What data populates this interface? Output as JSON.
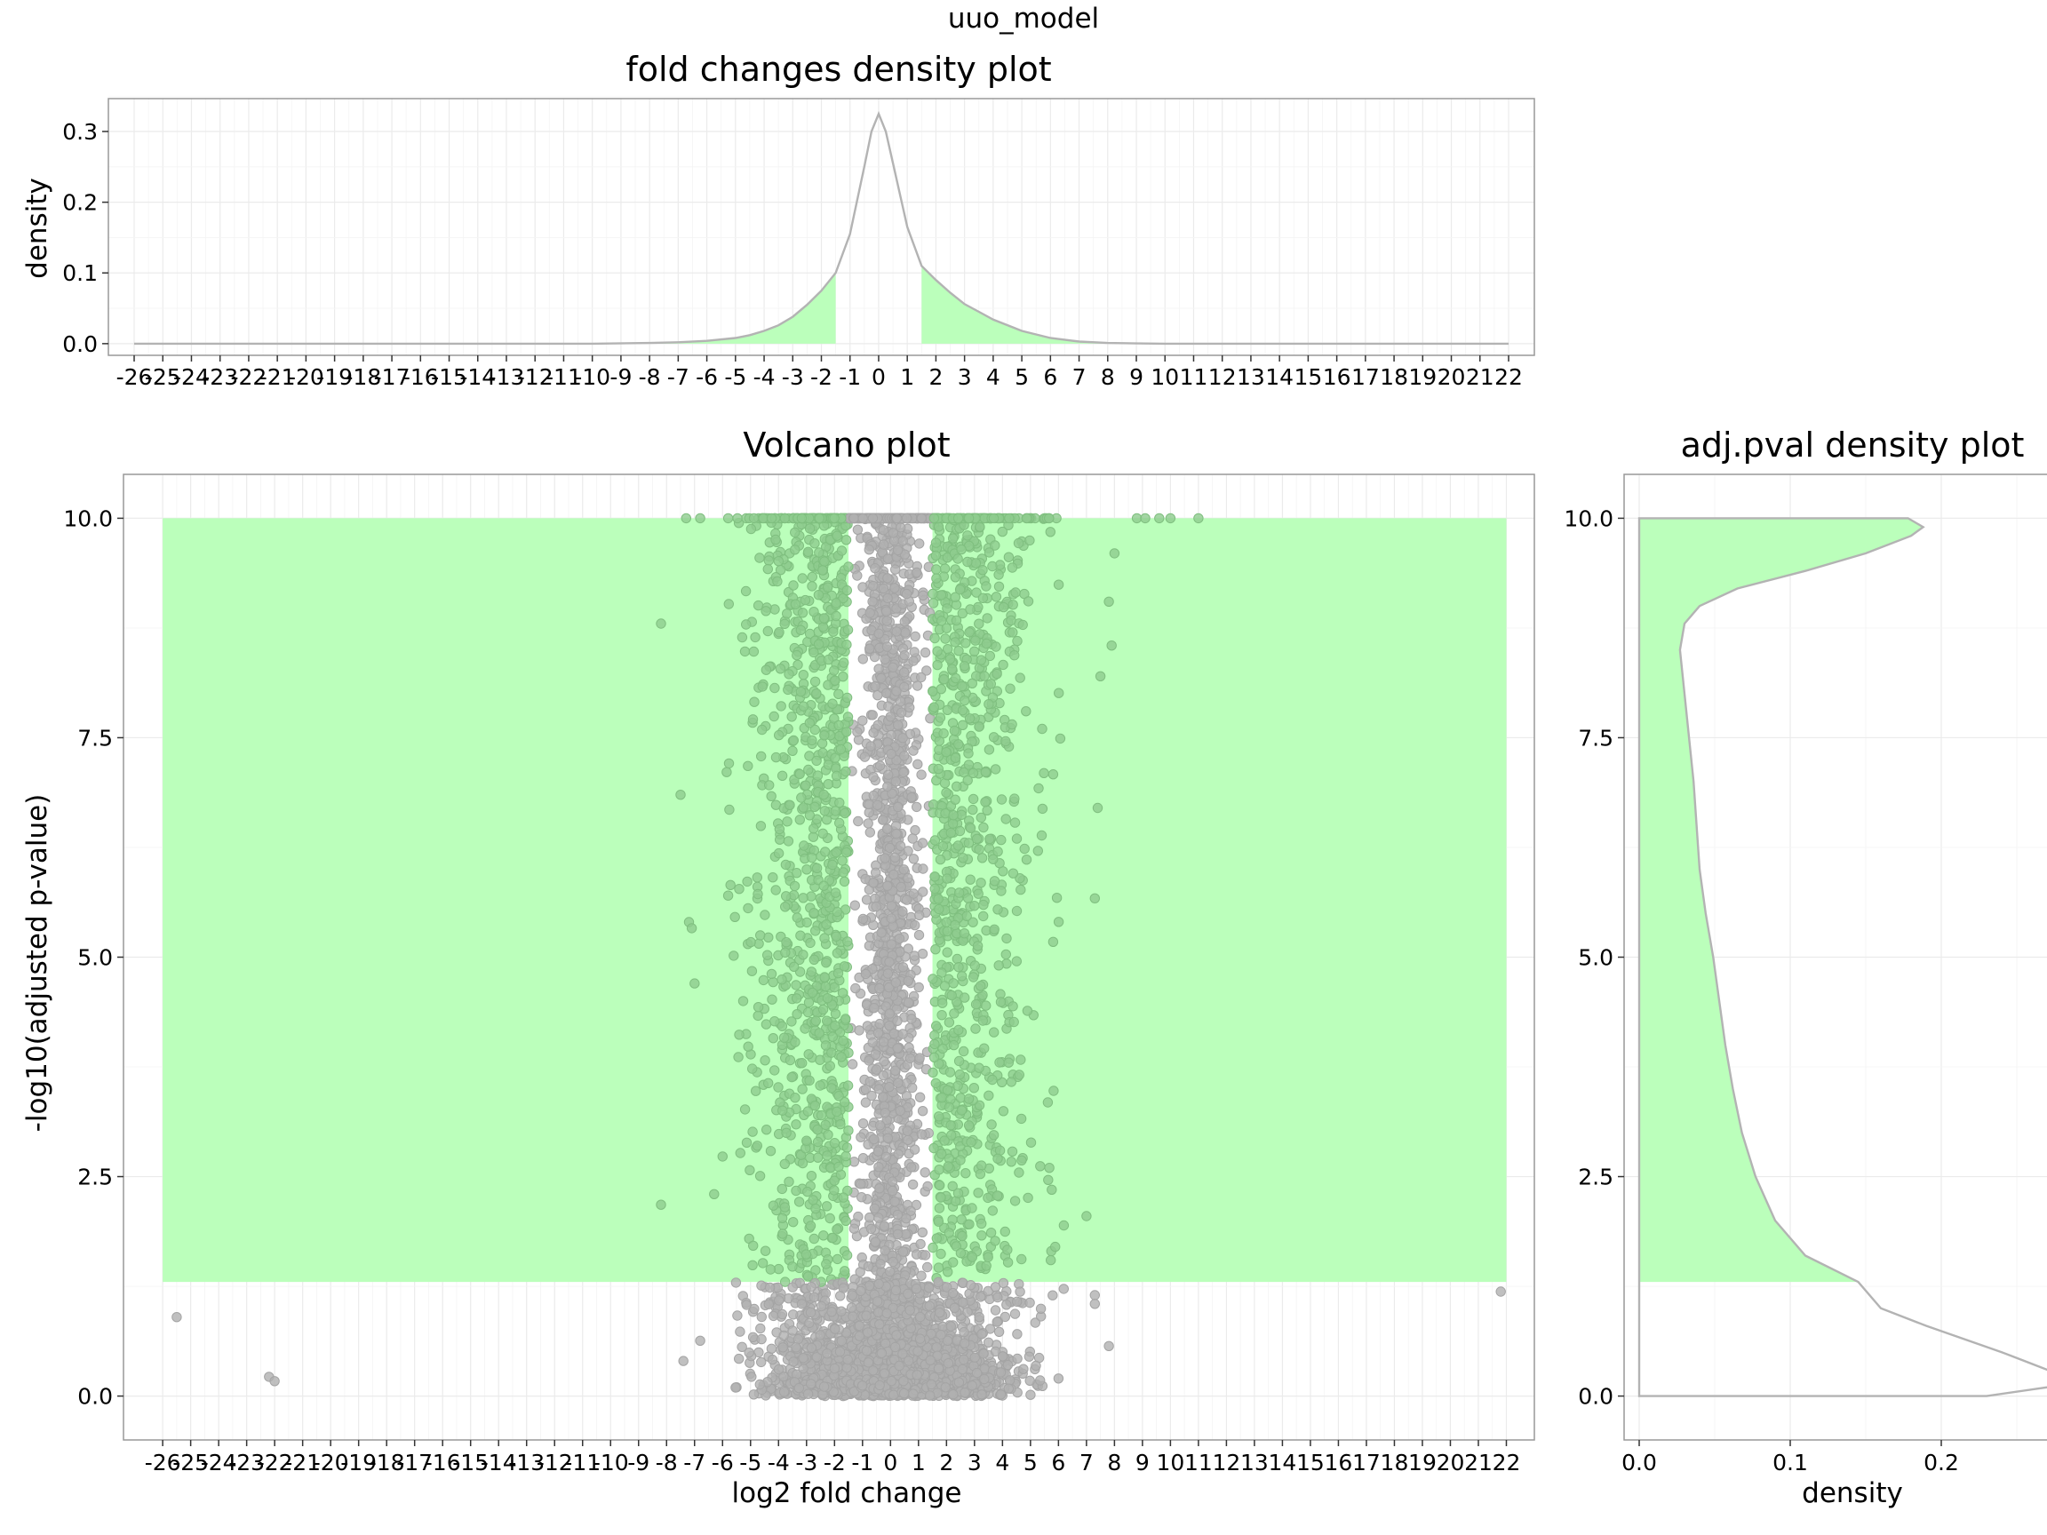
{
  "figure_title": "uuo_model",
  "colors": {
    "highlight": "#bbffbb",
    "density_line": "#b3b3b3",
    "point_gray": "#b0b0b0",
    "point_green": "#8fcc8f",
    "grid": "#ebebeb",
    "panel_border": "#999999"
  },
  "chart_data": [
    {
      "id": "fc_density",
      "type": "area",
      "title": "fold changes density plot",
      "xlabel": "",
      "ylabel": "density",
      "xlim": [
        -26,
        22
      ],
      "ylim": [
        0,
        0.33
      ],
      "x_ticks": [
        -26,
        -25,
        -24,
        -23,
        -22,
        -21,
        -20,
        -19,
        -18,
        -17,
        -16,
        -15,
        -14,
        -13,
        -12,
        -11,
        -10,
        -9,
        -8,
        -7,
        -6,
        -5,
        -4,
        -3,
        -2,
        -1,
        0,
        1,
        2,
        3,
        4,
        5,
        6,
        7,
        8,
        9,
        10,
        11,
        12,
        13,
        14,
        15,
        16,
        17,
        18,
        19,
        20,
        21,
        22
      ],
      "y_ticks": [
        0.0,
        0.1,
        0.2,
        0.3
      ],
      "y_tick_labels": [
        "0.0",
        "0.1",
        "0.2",
        "0.3"
      ],
      "highlight_regions": [
        [
          -10,
          -1.5
        ],
        [
          1.5,
          10
        ]
      ],
      "x": [
        -26,
        -10,
        -8,
        -7,
        -6,
        -5,
        -4.5,
        -4,
        -3.5,
        -3,
        -2.5,
        -2,
        -1.5,
        -1,
        -0.5,
        -0.25,
        0,
        0.25,
        0.5,
        1,
        1.5,
        2,
        2.5,
        3,
        3.5,
        4,
        5,
        6,
        7,
        8,
        9,
        10,
        22
      ],
      "y": [
        0,
        0,
        0.001,
        0.002,
        0.004,
        0.008,
        0.012,
        0.018,
        0.026,
        0.038,
        0.055,
        0.075,
        0.1,
        0.155,
        0.25,
        0.3,
        0.325,
        0.3,
        0.255,
        0.165,
        0.11,
        0.09,
        0.072,
        0.056,
        0.045,
        0.034,
        0.018,
        0.008,
        0.003,
        0.001,
        0.0003,
        0,
        0
      ]
    },
    {
      "id": "volcano",
      "type": "scatter",
      "title": "Volcano plot",
      "xlabel": "log2 fold change",
      "ylabel": "-log10(adjusted p-value)",
      "xlim": [
        -26,
        22
      ],
      "ylim": [
        0,
        10
      ],
      "x_ticks": [
        -26,
        -25,
        -24,
        -23,
        -22,
        -21,
        -20,
        -19,
        -18,
        -17,
        -16,
        -15,
        -14,
        -13,
        -12,
        -11,
        -10,
        -9,
        -8,
        -7,
        -6,
        -5,
        -4,
        -3,
        -2,
        -1,
        0,
        1,
        2,
        3,
        4,
        5,
        6,
        7,
        8,
        9,
        10,
        11,
        12,
        13,
        14,
        15,
        16,
        17,
        18,
        19,
        20,
        21,
        22
      ],
      "y_ticks": [
        0,
        2.5,
        5,
        7.5,
        10
      ],
      "y_tick_labels": [
        "0.0",
        "2.5",
        "5.0",
        "7.5",
        "10.0"
      ],
      "highlight_region": {
        "x": [
          -26,
          22
        ],
        "y": [
          1.3,
          10
        ]
      },
      "excluded_band": [
        -1.5,
        1.5
      ],
      "thresholds": {
        "log2fc": 1.5,
        "neg_log10_padj": 1.3
      },
      "outliers": [
        {
          "x": -25.5,
          "y": 0.9
        },
        {
          "x": -22.2,
          "y": 0.22
        },
        {
          "x": -22,
          "y": 0.17
        },
        {
          "x": 21.8,
          "y": 1.19
        },
        {
          "x": -8.2,
          "y": 8.8
        },
        {
          "x": -8.2,
          "y": 2.18
        },
        {
          "x": -7.5,
          "y": 6.85
        },
        {
          "x": -7.2,
          "y": 5.4
        },
        {
          "x": -7.1,
          "y": 5.33
        },
        {
          "x": -7,
          "y": 4.7
        },
        {
          "x": -6.8,
          "y": 0.63
        },
        {
          "x": -7.4,
          "y": 0.4
        },
        {
          "x": -6.3,
          "y": 2.3
        },
        {
          "x": 8,
          "y": 9.6
        },
        {
          "x": 7.8,
          "y": 9.05
        },
        {
          "x": 7.9,
          "y": 8.55
        },
        {
          "x": 7.5,
          "y": 8.2
        },
        {
          "x": 7.4,
          "y": 6.7
        },
        {
          "x": 7.3,
          "y": 5.67
        },
        {
          "x": 7,
          "y": 2.05
        },
        {
          "x": 7.3,
          "y": 1.15
        },
        {
          "x": 7.3,
          "y": 1.05
        },
        {
          "x": 7.8,
          "y": 0.57
        },
        {
          "x": 6,
          "y": 0.2
        },
        {
          "x": -7.3,
          "y": 10
        },
        {
          "x": -6.8,
          "y": 10
        },
        {
          "x": 8.8,
          "y": 10
        },
        {
          "x": 9.6,
          "y": 10
        },
        {
          "x": 10,
          "y": 10
        },
        {
          "x": 11,
          "y": 10
        },
        {
          "x": 9.1,
          "y": 10
        },
        {
          "x": -5.8,
          "y": 10
        }
      ]
    },
    {
      "id": "pval_density",
      "type": "area",
      "title": "adj.pval density plot",
      "xlabel": "density",
      "ylabel": "",
      "xlim": [
        -0.01,
        0.27
      ],
      "ylim": [
        0,
        10
      ],
      "x_ticks": [
        0.0,
        0.1,
        0.2
      ],
      "x_tick_labels": [
        "0.0",
        "0.1",
        "0.2"
      ],
      "y_ticks": [
        0,
        2.5,
        5,
        7.5,
        10
      ],
      "y_tick_labels": [
        "0.0",
        "2.5",
        "5.0",
        "7.5",
        "10.0"
      ],
      "highlight_from_y": 1.3,
      "y": [
        0,
        0.15,
        0.3,
        0.5,
        0.8,
        1.0,
        1.3,
        1.6,
        2.0,
        2.5,
        3.0,
        3.5,
        4.0,
        4.5,
        5.0,
        5.5,
        6.0,
        7.0,
        8.0,
        8.5,
        8.8,
        9.0,
        9.2,
        9.4,
        9.6,
        9.8,
        9.9,
        10
      ],
      "x": [
        0.23,
        0.29,
        0.27,
        0.24,
        0.19,
        0.16,
        0.145,
        0.11,
        0.09,
        0.077,
        0.068,
        0.062,
        0.057,
        0.053,
        0.049,
        0.044,
        0.04,
        0.036,
        0.03,
        0.027,
        0.03,
        0.04,
        0.065,
        0.11,
        0.15,
        0.18,
        0.188,
        0.178
      ]
    }
  ]
}
